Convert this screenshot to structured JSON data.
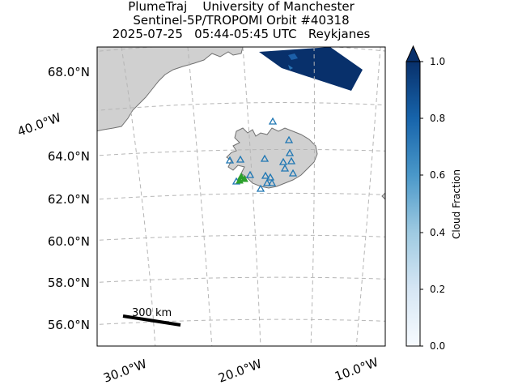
{
  "title": {
    "line1": "PlumeTraj    University of Manchester",
    "line2": "Sentinel-5P/TROPOMI Orbit #40318",
    "line3": "2025-07-25   05:44-05:45 UTC   Reykjanes"
  },
  "lat_labels": [
    "68.0°N",
    "64.0°N",
    "62.0°N",
    "60.0°N",
    "58.0°N",
    "56.0°N"
  ],
  "lon_labels": [
    "40.0°W",
    "30.0°W",
    "20.0°W",
    "10.0°W"
  ],
  "scale_bar": {
    "label": "300 km"
  },
  "colorbar": {
    "label": "Cloud Fraction",
    "ticks": [
      "0.0",
      "0.2",
      "0.4",
      "0.6",
      "0.8",
      "1.0"
    ],
    "colormap": "Blues",
    "range": [
      0.0,
      1.0
    ],
    "extend": "max"
  },
  "colors": {
    "land": "#d0d0d0",
    "coast": "#707070",
    "grid": "#b5b5b5",
    "volcano_marker": "#1f77b4",
    "target_marker": "#2ca02c"
  },
  "markers": {
    "volcano_icon": "triangle-outline",
    "target_icon": "triangle-filled"
  }
}
